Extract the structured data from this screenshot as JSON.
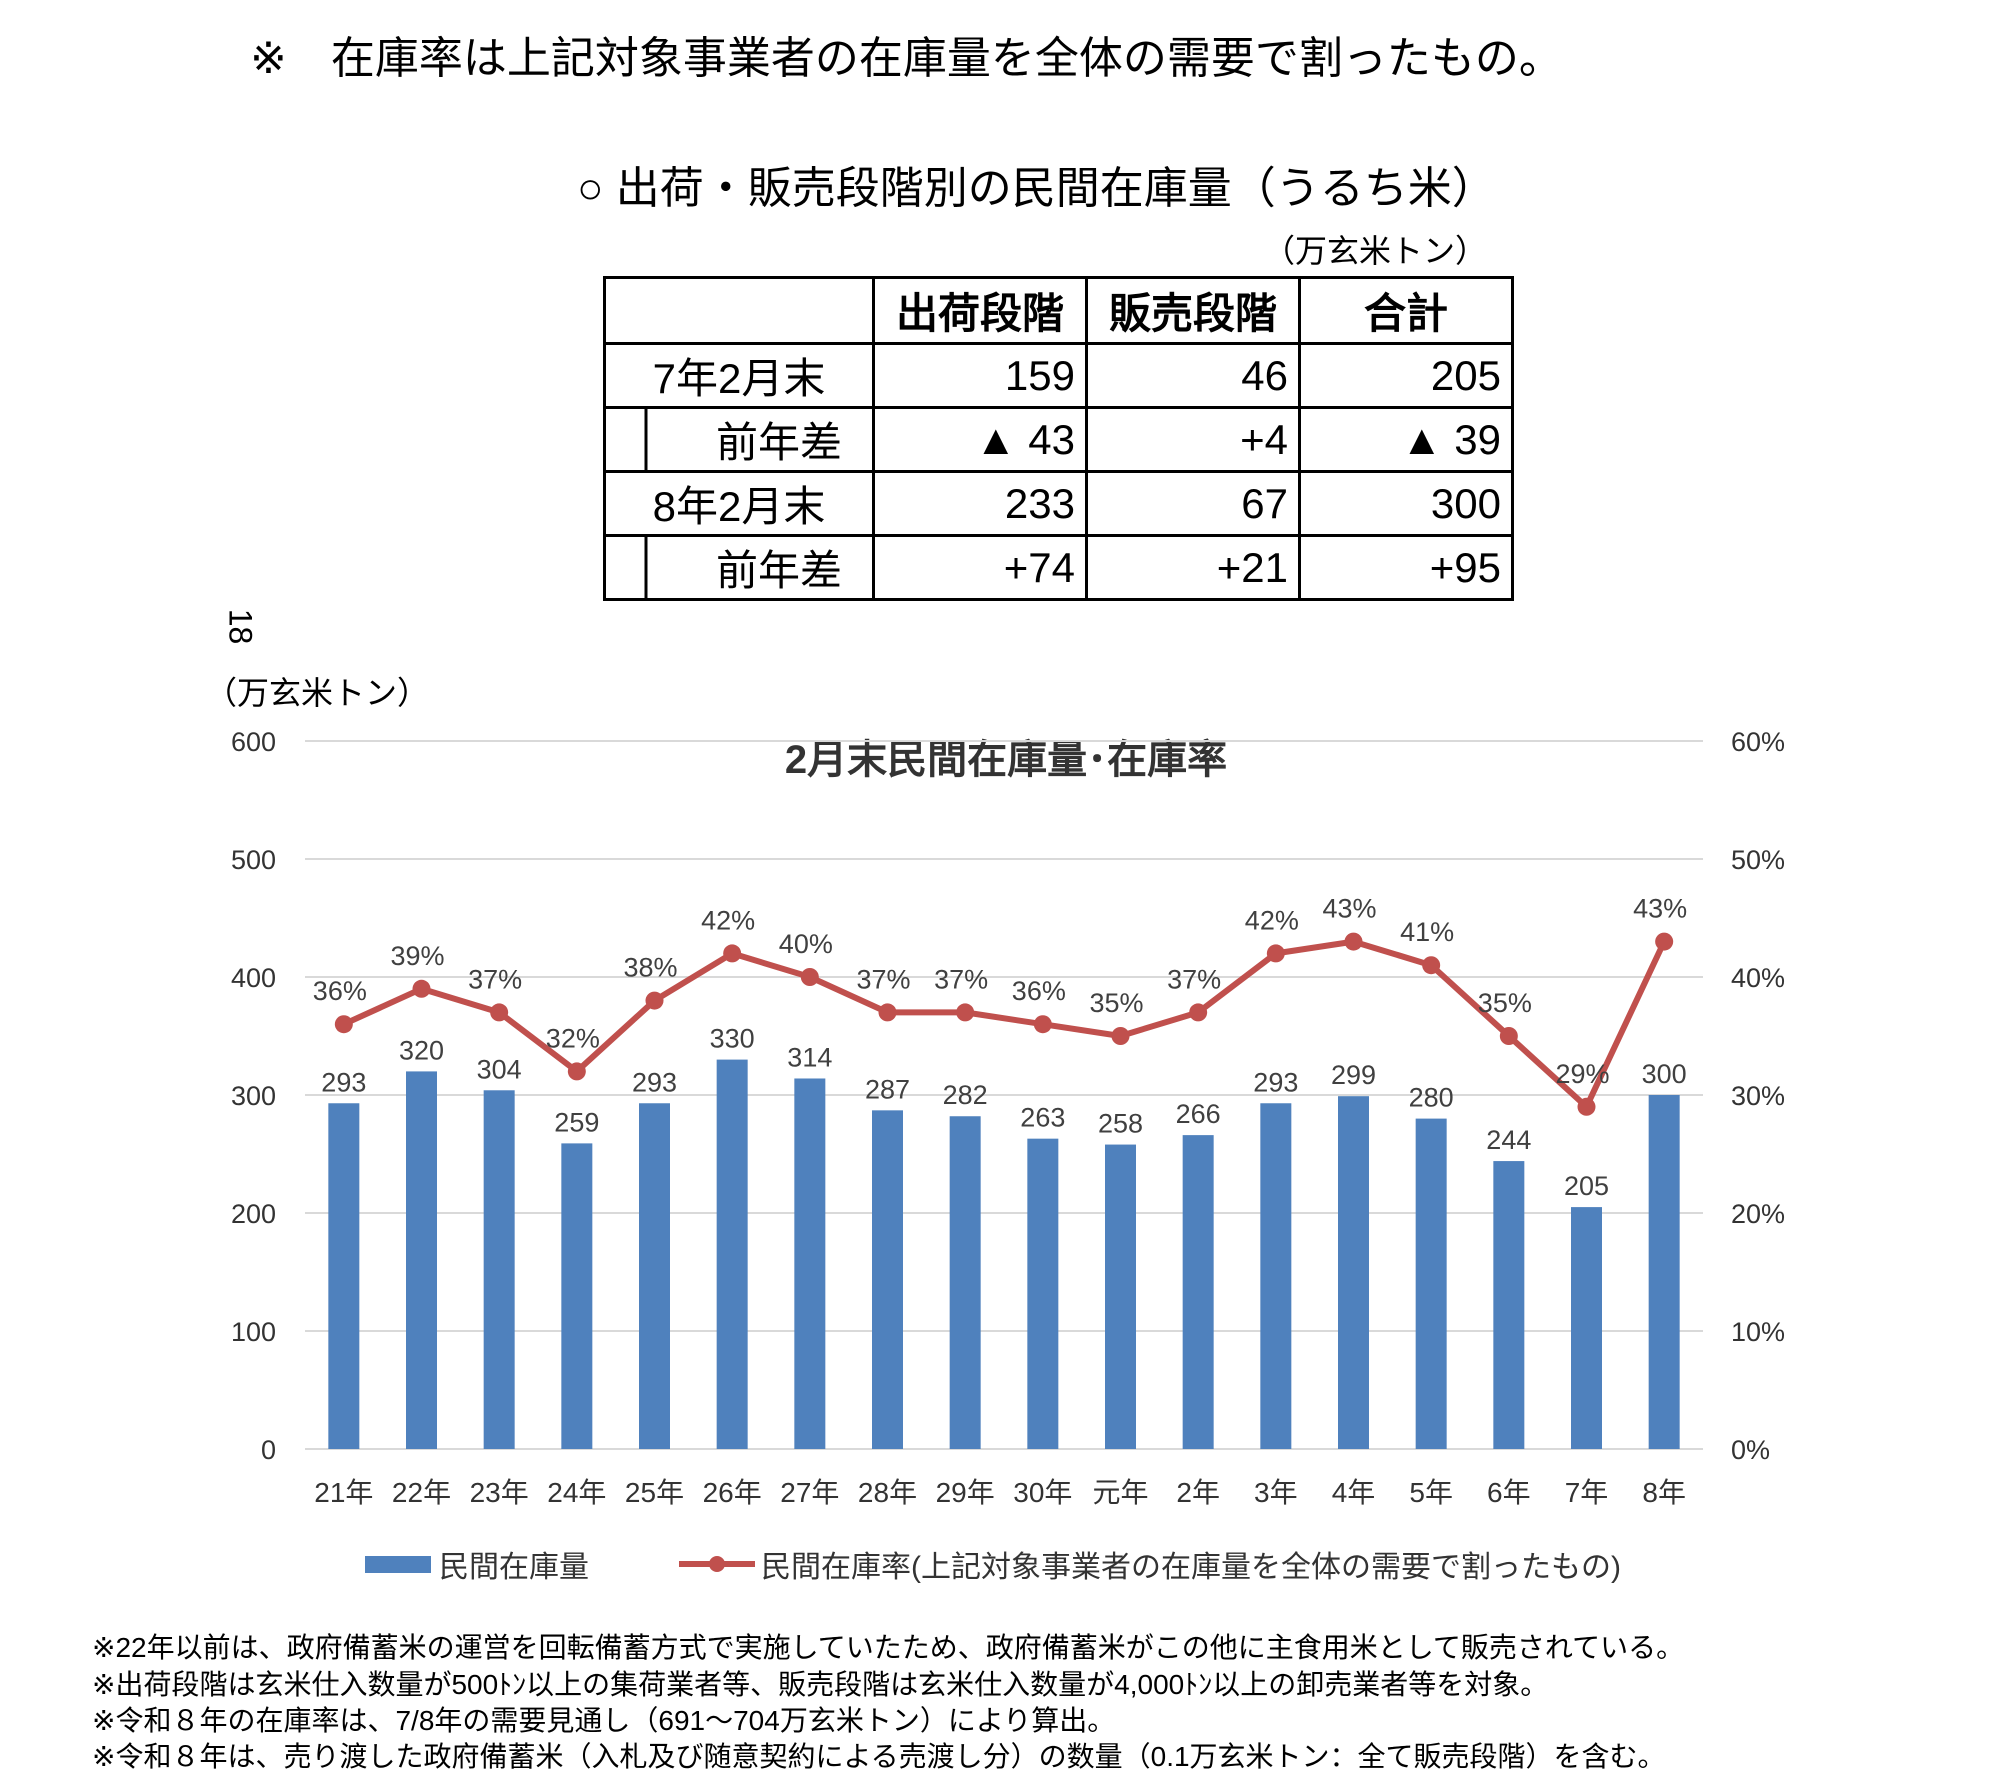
{
  "top_note": "※　在庫率は上記対象事業者の在庫量を全体の需要で割ったもの。",
  "table": {
    "title": "○ 出荷・販売段階別の民間在庫量（うるち米）",
    "unit": "（万玄米トン）",
    "headers": [
      "",
      "出荷段階",
      "販売段階",
      "合計"
    ],
    "rows": [
      {
        "label": "7年2月末",
        "values": [
          "159",
          "46",
          "205"
        ],
        "sub": false
      },
      {
        "label": "前年差",
        "values": [
          "▲ 43",
          "+4",
          "▲ 39"
        ],
        "sub": true
      },
      {
        "label": "8年2月末",
        "values": [
          "233",
          "67",
          "300"
        ],
        "sub": false
      },
      {
        "label": "前年差",
        "values": [
          "+74",
          "+21",
          "+95"
        ],
        "sub": true
      }
    ]
  },
  "page_number": "18",
  "chart_data": {
    "type": "bar+line",
    "title": "2月末民間在庫量･在庫率",
    "ylabel": "（万玄米トン）",
    "ylim": [
      0,
      600
    ],
    "yticks": [
      "0",
      "100",
      "200",
      "300",
      "400",
      "500",
      "600"
    ],
    "y2lim": [
      0,
      60
    ],
    "y2ticks": [
      "0%",
      "10%",
      "20%",
      "30%",
      "40%",
      "50%",
      "60%"
    ],
    "categories": [
      "21年",
      "22年",
      "23年",
      "24年",
      "25年",
      "26年",
      "27年",
      "28年",
      "29年",
      "30年",
      "元年",
      "2年",
      "3年",
      "4年",
      "5年",
      "6年",
      "7年",
      "8年"
    ],
    "series": [
      {
        "name": "民間在庫量",
        "type": "bar",
        "axis": "left",
        "color": "#4f81bd",
        "values": [
          293,
          320,
          304,
          259,
          293,
          330,
          314,
          287,
          282,
          263,
          258,
          266,
          293,
          299,
          280,
          244,
          205,
          300
        ]
      },
      {
        "name": "民間在庫率(上記対象事業者の在庫量を全体の需要で割ったもの)",
        "type": "line",
        "axis": "right",
        "color": "#c0504d",
        "values": [
          36,
          39,
          37,
          32,
          38,
          42,
          40,
          37,
          37,
          36,
          35,
          37,
          42,
          43,
          41,
          35,
          29,
          43
        ]
      }
    ],
    "grid": true,
    "legend": "bottom"
  },
  "footnotes": [
    "※22年以前は、政府備蓄米の運営を回転備蓄方式で実施していたため、政府備蓄米がこの他に主食用米として販売されている。",
    "※出荷段階は玄米仕入数量が500ﾄﾝ以上の集荷業者等、販売段階は玄米仕入数量が4,000ﾄﾝ以上の卸売業者等を対象。",
    "※令和８年の在庫率は、7/8年の需要見通し（691～704万玄米トン）により算出。",
    "※令和８年は、売り渡した政府備蓄米（入札及び随意契約による売渡し分）の数量（0.1万玄米トン：全て販売段階）を含む。"
  ]
}
